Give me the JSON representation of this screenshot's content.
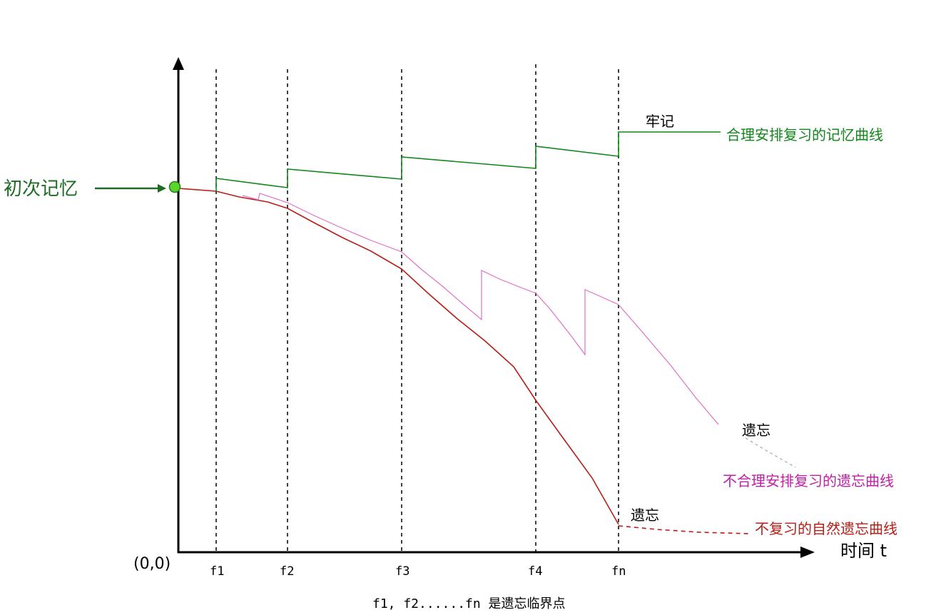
{
  "diagram": {
    "origin_label": "(0,0)",
    "x_axis_label": "时间 t",
    "initial_memory_label": "初次记忆",
    "critical_points": [
      "f1",
      "f2",
      "f3",
      "f4",
      "fn"
    ],
    "footnote": "f1, f2......fn 是遗忘临界点",
    "curves": [
      {
        "id": "reasonable",
        "label": "合理安排复习的记忆曲线",
        "end_label": "牢记",
        "color": "#11871a"
      },
      {
        "id": "unreasonable",
        "label": "不合理安排复习的遗忘曲线",
        "end_label": "遗忘",
        "color": "#c21fa6"
      },
      {
        "id": "natural",
        "label": "不复习的自然遗忘曲线",
        "end_label": "遗忘",
        "color": "#b81d16"
      }
    ],
    "colors": {
      "axis": "#000000",
      "initial_point": "#57d62b",
      "initial_label": "#1d6b24",
      "pink_line": "#e070c8"
    }
  }
}
